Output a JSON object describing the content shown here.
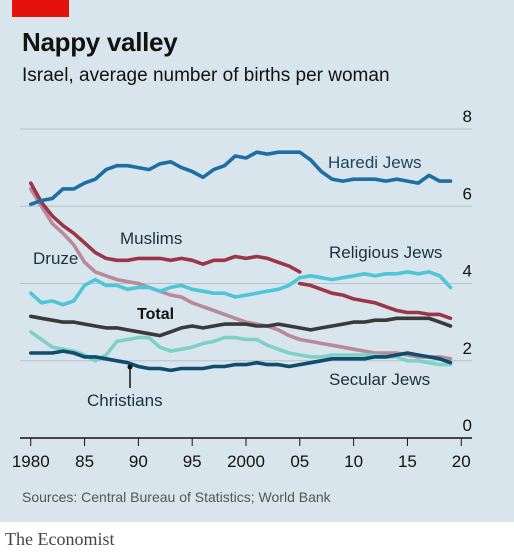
{
  "header": {
    "title": "Nappy valley",
    "subtitle": "Israel, average number of births per woman"
  },
  "footer": {
    "source": "Sources: Central Bureau of Statistics; World Bank",
    "brand": "The Economist"
  },
  "colors": {
    "background": "#d8e5ed",
    "accent": "#e3120b",
    "haredi": "#1e6ea4",
    "muslims": "#9b3648",
    "druze": "#b98a99",
    "religious": "#4ec6d8",
    "total": "#3a3a3a",
    "christians": "#7fd1c8",
    "secular": "#0f4c6e"
  },
  "chart_data": {
    "type": "line",
    "x": [
      1980,
      1981,
      1982,
      1983,
      1984,
      1985,
      1986,
      1987,
      1988,
      1989,
      1990,
      1991,
      1992,
      1993,
      1994,
      1995,
      1996,
      1997,
      1998,
      1999,
      2000,
      2001,
      2002,
      2003,
      2004,
      2005,
      2006,
      2007,
      2008,
      2009,
      2010,
      2011,
      2012,
      2013,
      2014,
      2015,
      2016,
      2017,
      2018,
      2019
    ],
    "xticks": [
      1980,
      1985,
      1990,
      1995,
      2000,
      2005,
      2010,
      2015,
      2020
    ],
    "xtick_labels": [
      "1980",
      "85",
      "90",
      "95",
      "2000",
      "05",
      "10",
      "15",
      "20"
    ],
    "yticks": [
      0,
      2,
      4,
      6,
      8
    ],
    "ylim": [
      0,
      8
    ],
    "xlim": [
      1979,
      2021
    ],
    "grid": true,
    "series": [
      {
        "name": "Haredi Jews",
        "key": "haredi",
        "values": [
          6.05,
          6.15,
          6.2,
          6.45,
          6.45,
          6.6,
          6.7,
          6.95,
          7.05,
          7.05,
          7.0,
          6.95,
          7.1,
          7.15,
          7.0,
          6.9,
          6.75,
          6.95,
          7.05,
          7.3,
          7.25,
          7.4,
          7.35,
          7.4,
          7.4,
          7.4,
          7.2,
          6.9,
          6.7,
          6.65,
          6.7,
          6.7,
          6.7,
          6.65,
          6.7,
          6.65,
          6.6,
          6.8,
          6.65,
          6.65
        ]
      },
      {
        "name": "Muslims",
        "key": "muslims",
        "values": [
          6.6,
          6.1,
          5.75,
          5.5,
          5.3,
          5.05,
          4.8,
          4.65,
          4.6,
          4.6,
          4.65,
          4.65,
          4.65,
          4.6,
          4.65,
          4.6,
          4.5,
          4.6,
          4.6,
          4.7,
          4.65,
          4.7,
          4.65,
          4.55,
          4.45,
          4.3,
          null,
          null,
          null,
          null,
          null,
          null,
          null,
          null,
          null,
          null,
          null,
          null,
          null,
          null
        ]
      },
      {
        "name": "Muslims (continued)",
        "key": "muslims_late",
        "values": [
          null,
          null,
          null,
          null,
          null,
          null,
          null,
          null,
          null,
          null,
          null,
          null,
          null,
          null,
          null,
          null,
          null,
          null,
          null,
          null,
          null,
          null,
          null,
          null,
          null,
          4.0,
          3.95,
          3.85,
          3.75,
          3.7,
          3.6,
          3.55,
          3.5,
          3.4,
          3.3,
          3.25,
          3.25,
          3.2,
          3.2,
          3.1
        ]
      },
      {
        "name": "Druze",
        "key": "druze",
        "values": [
          6.45,
          6.0,
          5.55,
          5.3,
          5.0,
          4.55,
          4.3,
          4.2,
          4.1,
          4.05,
          4.0,
          3.9,
          3.8,
          3.7,
          3.65,
          3.5,
          3.4,
          3.3,
          3.2,
          3.1,
          3.0,
          2.95,
          2.9,
          2.8,
          2.65,
          2.55,
          2.5,
          2.45,
          2.4,
          2.35,
          2.3,
          2.25,
          2.2,
          2.2,
          2.2,
          2.15,
          2.1,
          2.1,
          2.1,
          2.05
        ]
      },
      {
        "name": "Religious Jews",
        "key": "religious",
        "values": [
          3.75,
          3.5,
          3.55,
          3.45,
          3.55,
          3.95,
          4.1,
          3.95,
          3.95,
          3.85,
          3.9,
          3.9,
          3.8,
          3.9,
          3.95,
          3.85,
          3.8,
          3.75,
          3.75,
          3.65,
          3.7,
          3.75,
          3.8,
          3.85,
          3.95,
          4.15,
          4.2,
          4.15,
          4.1,
          4.15,
          4.2,
          4.25,
          4.2,
          4.25,
          4.25,
          4.3,
          4.25,
          4.3,
          4.2,
          3.9
        ]
      },
      {
        "name": "Total",
        "key": "total",
        "values": [
          3.15,
          3.1,
          3.05,
          3.0,
          3.0,
          2.95,
          2.9,
          2.85,
          2.85,
          2.8,
          2.75,
          2.7,
          2.65,
          2.75,
          2.85,
          2.9,
          2.85,
          2.9,
          2.95,
          2.95,
          2.95,
          2.9,
          2.9,
          2.95,
          2.9,
          2.85,
          2.8,
          2.85,
          2.9,
          2.95,
          3.0,
          3.0,
          3.05,
          3.05,
          3.1,
          3.1,
          3.1,
          3.1,
          3.0,
          2.9
        ]
      },
      {
        "name": "Christians",
        "key": "christians",
        "values": [
          2.75,
          2.55,
          2.35,
          2.3,
          2.25,
          2.15,
          2.0,
          2.15,
          2.5,
          2.55,
          2.6,
          2.6,
          2.35,
          2.25,
          2.3,
          2.35,
          2.45,
          2.5,
          2.6,
          2.6,
          2.55,
          2.55,
          2.4,
          2.3,
          2.2,
          2.15,
          2.1,
          2.1,
          2.15,
          2.15,
          2.15,
          2.15,
          2.15,
          2.1,
          2.1,
          2.0,
          2.0,
          1.95,
          1.9,
          1.9
        ]
      },
      {
        "name": "Secular Jews",
        "key": "secular",
        "values": [
          2.2,
          2.2,
          2.2,
          2.25,
          2.2,
          2.1,
          2.1,
          2.05,
          2.0,
          1.95,
          1.85,
          1.8,
          1.8,
          1.75,
          1.8,
          1.8,
          1.8,
          1.85,
          1.85,
          1.9,
          1.9,
          1.95,
          1.9,
          1.9,
          1.85,
          1.9,
          1.95,
          2.0,
          2.05,
          2.05,
          2.05,
          2.05,
          2.1,
          2.1,
          2.15,
          2.2,
          2.15,
          2.1,
          2.05,
          1.95
        ]
      }
    ],
    "labels": {
      "haredi": "Haredi Jews",
      "muslims": "Muslims",
      "druze": "Druze",
      "religious": "Religious Jews",
      "total": "Total",
      "christians": "Christians",
      "secular": "Secular Jews"
    }
  }
}
